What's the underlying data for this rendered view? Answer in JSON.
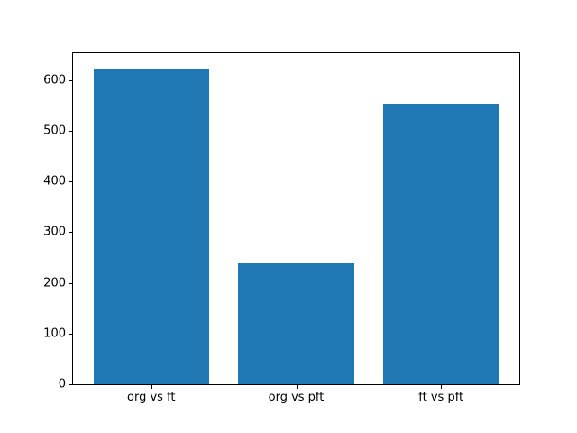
{
  "chart_data": {
    "type": "bar",
    "categories": [
      "org vs ft",
      "org vs pft",
      "ft vs pft"
    ],
    "values": [
      622,
      240,
      554
    ],
    "title": "",
    "xlabel": "",
    "ylabel": "",
    "ylim": [
      0,
      653
    ],
    "yticks": [
      0,
      100,
      200,
      300,
      400,
      500,
      600
    ],
    "bar_width_fraction": 0.8,
    "grid": false,
    "legend": "none"
  },
  "colors": {
    "bar": "#1f77b4",
    "background": "#ffffff",
    "spine": "#000000",
    "tick_text": "#000000"
  }
}
